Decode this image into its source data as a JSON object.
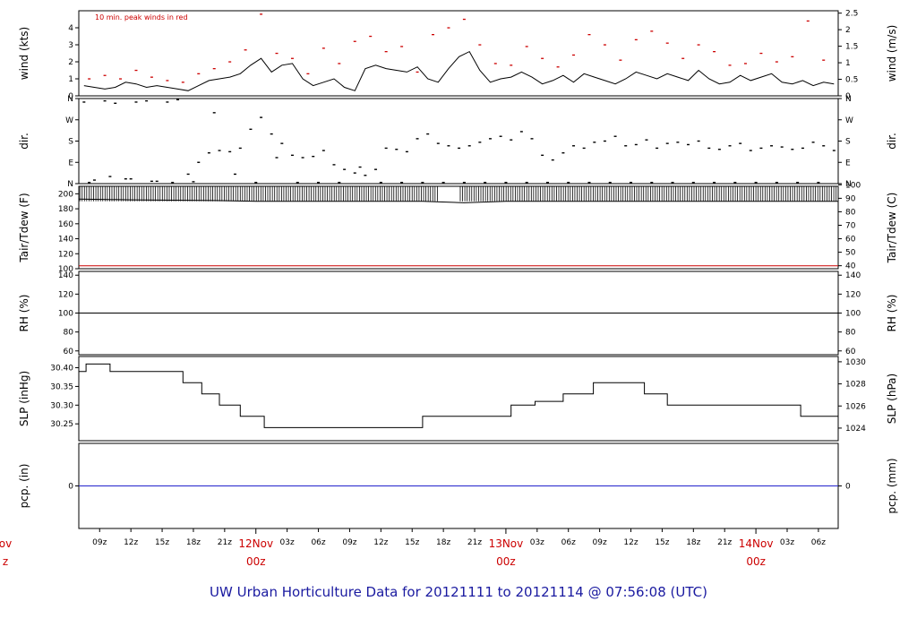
{
  "title": "UW Urban Horticulture Data for 20121111  to  20121114 @ 07:56:08  (UTC)",
  "x_axis": {
    "hour_ticks": [
      "09z",
      "12z",
      "15z",
      "18z",
      "21z",
      "03z",
      "06z",
      "09z",
      "12z",
      "15z",
      "18z",
      "21z",
      "03z",
      "06z",
      "09z",
      "12z",
      "15z",
      "18z",
      "21z",
      "03z",
      "06z"
    ],
    "hour_values": [
      9,
      12,
      15,
      18,
      21,
      27,
      30,
      33,
      36,
      39,
      42,
      45,
      51,
      54,
      57,
      60,
      63,
      66,
      69,
      75,
      78
    ],
    "day_ticks": [
      {
        "line1": "ov",
        "line2": "z",
        "hour": 0
      },
      {
        "line1": "12Nov",
        "line2": "00z",
        "hour": 24
      },
      {
        "line1": "13Nov",
        "line2": "00z",
        "hour": 48
      },
      {
        "line1": "14Nov",
        "line2": "00z",
        "hour": 72
      }
    ],
    "range_hours": [
      7.0,
      79.9
    ]
  },
  "chart_data": [
    {
      "type": "line",
      "id": "wind",
      "ylabel": "wind (kts)",
      "ylabel_right": "wind (m/s)",
      "ylim": [
        0,
        5.0
      ],
      "yticks": [
        0,
        1,
        2,
        3,
        4
      ],
      "yticks_right": [
        0,
        0.5,
        1,
        1.5,
        2,
        2.5
      ],
      "annotation": "10 min. peak winds in red",
      "series": [
        {
          "name": "wind",
          "color": "#000000",
          "x": [
            7.5,
            8.5,
            9.5,
            10.5,
            11.5,
            12.5,
            13.5,
            14.5,
            15.5,
            16.5,
            17.5,
            18.5,
            19.5,
            20.5,
            21.5,
            22.5,
            23.5,
            24.5,
            25.5,
            26.5,
            27.5,
            28.5,
            29.5,
            30.5,
            31.5,
            32.5,
            33.5,
            34.5,
            35.5,
            36.5,
            37.5,
            38.5,
            39.5,
            40.5,
            41.5,
            42.5,
            43.5,
            44.5,
            45.5,
            46.5,
            47.5,
            48.5,
            49.5,
            50.5,
            51.5,
            52.5,
            53.5,
            54.5,
            55.5,
            56.5,
            57.5,
            58.5,
            59.5,
            60.5,
            61.5,
            62.5,
            63.5,
            64.5,
            65.5,
            66.5,
            67.5,
            68.5,
            69.5,
            70.5,
            71.5,
            72.5,
            73.5,
            74.5,
            75.5,
            76.5,
            77.5,
            78.5,
            79.5
          ],
          "values": [
            0.6,
            0.5,
            0.4,
            0.5,
            0.8,
            0.7,
            0.5,
            0.6,
            0.5,
            0.4,
            0.3,
            0.6,
            0.9,
            1.0,
            1.1,
            1.3,
            1.8,
            2.2,
            1.4,
            1.8,
            1.9,
            1.0,
            0.6,
            0.8,
            1.0,
            0.5,
            0.3,
            1.6,
            1.8,
            1.6,
            1.5,
            1.4,
            1.7,
            1.0,
            0.8,
            1.6,
            2.3,
            2.6,
            1.5,
            0.8,
            1.0,
            1.1,
            1.4,
            1.1,
            0.7,
            0.9,
            1.2,
            0.8,
            1.3,
            1.1,
            0.9,
            0.7,
            1.0,
            1.4,
            1.2,
            1.0,
            1.3,
            1.1,
            0.9,
            1.5,
            1.0,
            0.7,
            0.8,
            1.2,
            0.9,
            1.1,
            1.3,
            0.8,
            0.7,
            0.9,
            0.6,
            0.8,
            0.7
          ]
        },
        {
          "name": "10 min. peak winds",
          "color": "#cc0000",
          "x": [
            8.0,
            9.5,
            11.0,
            12.5,
            14.0,
            15.5,
            17.0,
            18.5,
            20.0,
            21.5,
            23.0,
            24.5,
            26.0,
            27.5,
            29.0,
            30.5,
            32.0,
            33.5,
            35.0,
            36.5,
            38.0,
            39.5,
            41.0,
            42.5,
            44.0,
            45.5,
            47.0,
            48.5,
            50.0,
            51.5,
            53.0,
            54.5,
            56.0,
            57.5,
            59.0,
            60.5,
            62.0,
            63.5,
            65.0,
            66.5,
            68.0,
            69.5,
            71.0,
            72.5,
            74.0,
            75.5,
            77.0,
            78.5
          ],
          "values": [
            1.0,
            1.2,
            1.0,
            1.5,
            1.1,
            0.9,
            0.8,
            1.3,
            1.6,
            2.0,
            2.7,
            4.8,
            2.5,
            2.2,
            1.3,
            2.8,
            1.9,
            3.2,
            3.5,
            2.6,
            2.9,
            1.4,
            3.6,
            4.0,
            4.5,
            3.0,
            1.9,
            1.8,
            2.9,
            2.2,
            1.7,
            2.4,
            3.6,
            3.0,
            2.1,
            3.3,
            3.8,
            3.1,
            2.2,
            3.0,
            2.6,
            1.8,
            1.9,
            2.5,
            2.0,
            2.3,
            4.4,
            2.1
          ]
        }
      ]
    },
    {
      "type": "scatter",
      "id": "direction",
      "ylabel": "dir.",
      "ylabel_right": "dir.",
      "yticks": [
        "N",
        "E",
        "S",
        "W",
        "N"
      ],
      "ylim": [
        0,
        360
      ],
      "series": [
        {
          "name": "dir",
          "color": "#000000",
          "x": [
            7.5,
            8.5,
            9.5,
            10.5,
            11.5,
            12.5,
            13.5,
            14.5,
            15.5,
            16.5,
            17.5,
            18.5,
            19.5,
            20.5,
            21.5,
            22.5,
            23.5,
            24.5,
            25.5,
            26.5,
            27.5,
            28.5,
            29.5,
            30.5,
            31.5,
            32.5,
            33.5,
            34.5,
            35.5,
            36.5,
            37.5,
            38.5,
            39.5,
            40.5,
            41.5,
            42.5,
            43.5,
            44.5,
            45.5,
            46.5,
            47.5,
            48.5,
            49.5,
            50.5,
            51.5,
            52.5,
            53.5,
            54.5,
            55.5,
            56.5,
            57.5,
            58.5,
            59.5,
            60.5,
            61.5,
            62.5,
            63.5,
            64.5,
            65.5,
            66.5,
            67.5,
            68.5,
            69.5,
            70.5,
            71.5,
            72.5,
            73.5,
            74.5,
            75.5,
            76.5,
            77.5,
            78.5,
            79.5
          ],
          "values": [
            345,
            15,
            350,
            340,
            20,
            345,
            350,
            10,
            345,
            355,
            40,
            90,
            130,
            140,
            135,
            150,
            230,
            280,
            210,
            170,
            120,
            110,
            115,
            140,
            80,
            60,
            45,
            35,
            60,
            150,
            145,
            135,
            190,
            210,
            170,
            160,
            150,
            160,
            175,
            190,
            200,
            185,
            220,
            190,
            120,
            100,
            130,
            160,
            150,
            175,
            180,
            200,
            160,
            165,
            185,
            150,
            170,
            175,
            165,
            180,
            150,
            145,
            160,
            170,
            140,
            150,
            160,
            155,
            145,
            150,
            175,
            160,
            140
          ]
        },
        {
          "name": "dir2",
          "color": "#000000",
          "x": [
            8,
            10,
            12,
            14,
            16,
            18,
            20,
            22,
            24,
            26,
            28,
            30,
            32,
            34,
            36,
            38,
            40,
            42,
            44,
            46,
            48,
            50,
            52,
            54,
            56,
            58,
            60,
            62,
            64,
            66,
            68,
            70,
            72,
            74,
            76,
            78
          ],
          "values": [
            5,
            30,
            20,
            10,
            5,
            8,
            300,
            40,
            5,
            110,
            5,
            5,
            5,
            70,
            5,
            5,
            5,
            5,
            5,
            5,
            5,
            5,
            5,
            5,
            5,
            5,
            5,
            5,
            5,
            5,
            5,
            5,
            5,
            5,
            5,
            5
          ]
        }
      ]
    },
    {
      "type": "line",
      "id": "temperature",
      "ylabel": "Tair/Tdew (F)",
      "ylabel_right": "Tair/Tdew (C)",
      "ylim": [
        100,
        210
      ],
      "yticks": [
        100,
        120,
        140,
        160,
        180,
        200
      ],
      "yticks_right": [
        40,
        50,
        60,
        70,
        80,
        90,
        100
      ],
      "series": [
        {
          "name": "Tair",
          "color": "#000000",
          "x": [
            7,
            12,
            20,
            24,
            30,
            40,
            44,
            48,
            52,
            60,
            70,
            79.9
          ],
          "values": [
            193,
            192,
            191,
            190,
            190,
            190,
            188,
            190,
            190,
            190,
            190,
            190
          ]
        },
        {
          "name": "Tdew",
          "color": "#cc0000",
          "x": [
            7,
            79.9
          ],
          "values": [
            104,
            104
          ]
        }
      ]
    },
    {
      "type": "line",
      "id": "rh",
      "ylabel": "RH (%)",
      "ylabel_right": "RH (%)",
      "ylim": [
        56,
        144
      ],
      "yticks": [
        60,
        80,
        100,
        120,
        140
      ],
      "series": [
        {
          "name": "RH",
          "color": "#000000",
          "x": [
            7,
            79.9
          ],
          "values": [
            100,
            100
          ]
        }
      ]
    },
    {
      "type": "line",
      "id": "pressure",
      "ylabel": "SLP (inHg)",
      "ylabel_right": "SLP (hPa)",
      "ylim": [
        30.205,
        30.43
      ],
      "yticks": [
        30.25,
        30.3,
        30.35,
        30.4
      ],
      "yticks_right": [
        1024,
        1026,
        1028,
        1030
      ],
      "series": [
        {
          "name": "SLP",
          "color": "#000000",
          "x": [
            7,
            7.7,
            7.7,
            10.0,
            10.0,
            17.0,
            17.0,
            18.8,
            18.8,
            20.5,
            20.5,
            22.5,
            22.5,
            24.8,
            24.8,
            27.2,
            27.2,
            34.5,
            34.5,
            34.6,
            34.6,
            40.0,
            40.0,
            48.5,
            48.5,
            50.8,
            50.8,
            53.5,
            53.5,
            56.4,
            56.4,
            61.3,
            61.3,
            63.5,
            63.5,
            76.3,
            76.3,
            79.9
          ],
          "values": [
            30.39,
            30.39,
            30.41,
            30.41,
            30.39,
            30.39,
            30.36,
            30.36,
            30.33,
            30.33,
            30.3,
            30.3,
            30.27,
            30.27,
            30.24,
            30.24,
            30.24,
            30.24,
            30.24,
            30.24,
            30.24,
            30.24,
            30.27,
            30.27,
            30.3,
            30.3,
            30.31,
            30.31,
            30.33,
            30.33,
            30.36,
            30.36,
            30.33,
            30.33,
            30.3,
            30.3,
            30.27,
            30.27
          ]
        }
      ]
    },
    {
      "type": "line",
      "id": "precip",
      "ylabel": "pcp. (in)",
      "ylabel_right": "pcp. (mm)",
      "ylim": [
        -0.05,
        0.05
      ],
      "yticks": [
        0
      ],
      "yticks_right": [
        0
      ],
      "series": [
        {
          "name": "pcp",
          "color": "#2222cc",
          "x": [
            7,
            79.9
          ],
          "values": [
            0,
            0
          ]
        }
      ]
    }
  ]
}
